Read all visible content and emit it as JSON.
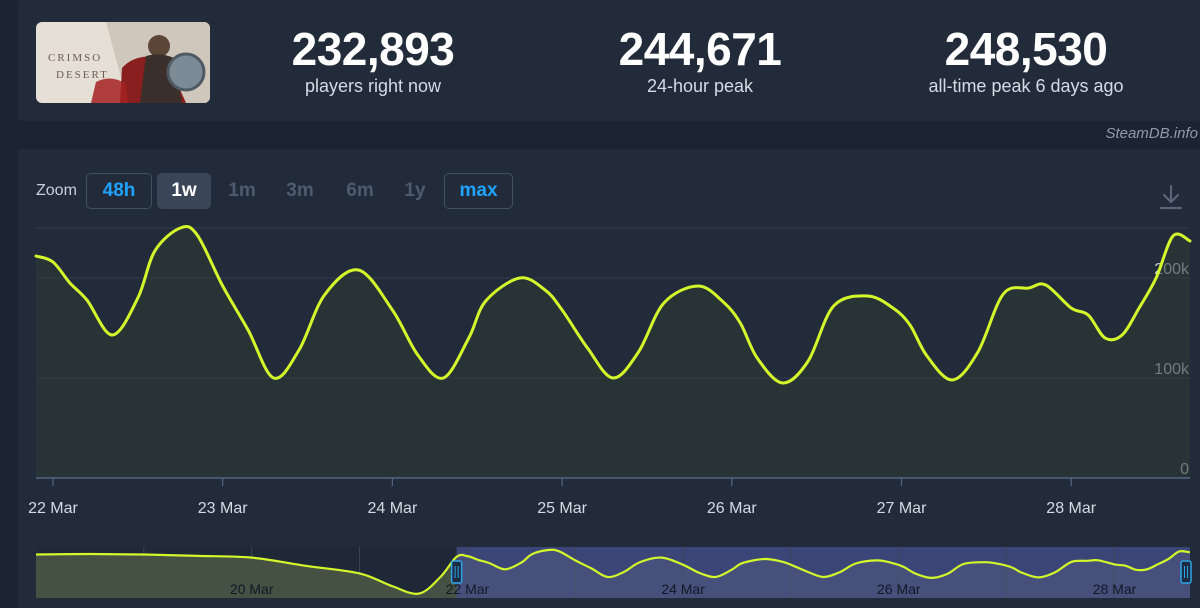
{
  "game": {
    "thumb_text_1": "CRIMSO",
    "thumb_text_2": "DESERT"
  },
  "stats": [
    {
      "value": "232,893",
      "label": "players right now"
    },
    {
      "value": "244,671",
      "label": "24-hour peak"
    },
    {
      "value": "248,530",
      "label": "all-time peak 6 days ago"
    }
  ],
  "source": "SteamDB.info",
  "zoom": {
    "label": "Zoom",
    "buttons": [
      {
        "label": "48h",
        "state": "outlined"
      },
      {
        "label": "1w",
        "state": "active"
      },
      {
        "label": "1m",
        "state": "disabled"
      },
      {
        "label": "3m",
        "state": "disabled"
      },
      {
        "label": "6m",
        "state": "disabled"
      },
      {
        "label": "1y",
        "state": "disabled"
      },
      {
        "label": "max",
        "state": "outlined"
      }
    ]
  },
  "icons": {
    "download": "download-icon"
  },
  "colors": {
    "line": "#d4f72c",
    "accent": "#1fa3ff",
    "navigator_selection": "#3b4577"
  },
  "chart_data": {
    "type": "line",
    "title": "",
    "xlabel": "",
    "ylabel": "",
    "ylim": [
      0,
      250000
    ],
    "y_ticks": [
      {
        "value": 0,
        "label": "0"
      },
      {
        "value": 100000,
        "label": "100k"
      },
      {
        "value": 200000,
        "label": "200k"
      }
    ],
    "x_ticks": [
      "22 Mar",
      "23 Mar",
      "24 Mar",
      "25 Mar",
      "26 Mar",
      "27 Mar",
      "28 Mar"
    ],
    "x_range_days": [
      21.9,
      28.7
    ],
    "series": [
      {
        "points": [
          [
            21.9,
            222000
          ],
          [
            22.0,
            216000
          ],
          [
            22.1,
            195000
          ],
          [
            22.2,
            178000
          ],
          [
            22.35,
            143000
          ],
          [
            22.5,
            180000
          ],
          [
            22.6,
            227000
          ],
          [
            22.75,
            250000
          ],
          [
            22.85,
            243000
          ],
          [
            23.0,
            192000
          ],
          [
            23.15,
            148000
          ],
          [
            23.3,
            100000
          ],
          [
            23.45,
            128000
          ],
          [
            23.6,
            183000
          ],
          [
            23.8,
            208000
          ],
          [
            24.0,
            168000
          ],
          [
            24.15,
            123000
          ],
          [
            24.3,
            100000
          ],
          [
            24.45,
            140000
          ],
          [
            24.55,
            177000
          ],
          [
            24.75,
            200000
          ],
          [
            24.9,
            188000
          ],
          [
            25.0,
            168000
          ],
          [
            25.15,
            130000
          ],
          [
            25.3,
            100000
          ],
          [
            25.45,
            126000
          ],
          [
            25.6,
            175000
          ],
          [
            25.8,
            192000
          ],
          [
            25.95,
            176000
          ],
          [
            26.05,
            155000
          ],
          [
            26.15,
            120000
          ],
          [
            26.3,
            95000
          ],
          [
            26.45,
            117000
          ],
          [
            26.6,
            172000
          ],
          [
            26.8,
            182000
          ],
          [
            26.95,
            170000
          ],
          [
            27.05,
            153000
          ],
          [
            27.15,
            122000
          ],
          [
            27.3,
            98000
          ],
          [
            27.45,
            126000
          ],
          [
            27.6,
            184000
          ],
          [
            27.75,
            190000
          ],
          [
            27.85,
            193000
          ],
          [
            28.0,
            170000
          ],
          [
            28.1,
            163000
          ],
          [
            28.2,
            140000
          ],
          [
            28.3,
            143000
          ],
          [
            28.4,
            170000
          ],
          [
            28.5,
            200000
          ],
          [
            28.6,
            242000
          ],
          [
            28.7,
            237000
          ]
        ]
      }
    ],
    "navigator": {
      "x_labels": [
        "20 Mar",
        "22 Mar",
        "24 Mar",
        "26 Mar",
        "28 Mar"
      ],
      "x_range_days": [
        18.0,
        28.7
      ],
      "selection_days": [
        21.9,
        28.7
      ]
    }
  }
}
